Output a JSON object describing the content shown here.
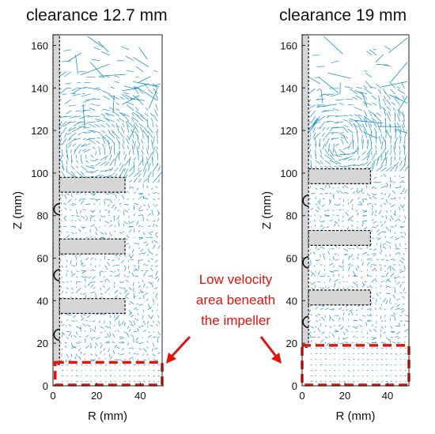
{
  "chart_data": [
    {
      "type": "scatter",
      "title": "clearance 12.7 mm",
      "xlabel": "R (mm)",
      "ylabel": "Z (mm)",
      "xlim": [
        0,
        50
      ],
      "ylim": [
        0,
        165
      ],
      "xticks": [
        "0",
        "20",
        "40"
      ],
      "yticks": [
        "0",
        "20",
        "40",
        "60",
        "80",
        "100",
        "120",
        "140",
        "160"
      ],
      "grid": false,
      "vector_color": "#1f8fc8",
      "shaft": {
        "r_min": 0,
        "r_max": 3,
        "z_min": 10,
        "z_max": 165
      },
      "impeller_blades": [
        {
          "r_min": 3,
          "r_max": 33,
          "z_min": 91,
          "z_max": 98
        },
        {
          "r_min": 3,
          "r_max": 33,
          "z_min": 62,
          "z_max": 69
        },
        {
          "r_min": 3,
          "r_max": 33,
          "z_min": 34,
          "z_max": 41
        }
      ],
      "hub_arcs_z": [
        83,
        52,
        24
      ],
      "low_velocity_region": {
        "r_min": 1,
        "r_max": 50,
        "z_min": 0,
        "z_max": 11
      }
    },
    {
      "type": "scatter",
      "title": "clearance 19 mm",
      "xlabel": "R (mm)",
      "ylabel": "Z (mm)",
      "xlim": [
        0,
        50
      ],
      "ylim": [
        0,
        165
      ],
      "xticks": [
        "0",
        "20",
        "40"
      ],
      "yticks": [
        "0",
        "20",
        "40",
        "60",
        "80",
        "100",
        "120",
        "140",
        "160"
      ],
      "grid": false,
      "vector_color": "#1f8fc8",
      "shaft": {
        "r_min": 0,
        "r_max": 3,
        "z_min": 18,
        "z_max": 165
      },
      "impeller_blades": [
        {
          "r_min": 3,
          "r_max": 32,
          "z_min": 95,
          "z_max": 102
        },
        {
          "r_min": 3,
          "r_max": 32,
          "z_min": 66,
          "z_max": 73
        },
        {
          "r_min": 3,
          "r_max": 32,
          "z_min": 38,
          "z_max": 45
        }
      ],
      "hub_arcs_z": [
        87,
        58,
        30
      ],
      "low_velocity_region": {
        "r_min": 0,
        "r_max": 50,
        "z_min": 0,
        "z_max": 19
      }
    }
  ],
  "annotation": {
    "lines": [
      "Low velocity",
      "area beneath",
      "the impeller"
    ],
    "color": "#e3120b"
  }
}
